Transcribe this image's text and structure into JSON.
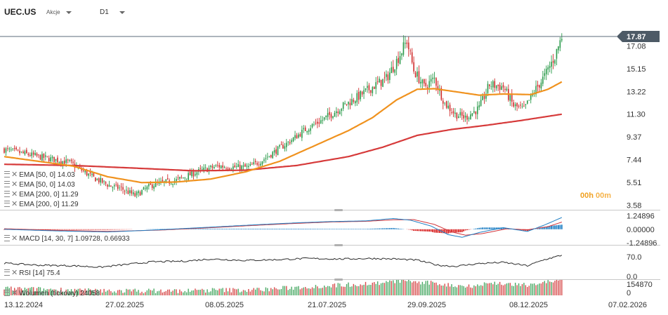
{
  "header": {
    "symbol": "UEC.US",
    "type": "Akcje",
    "timeframe": "D1"
  },
  "timer": {
    "left": "00h",
    "right": "00m"
  },
  "legend": [
    {
      "text": "EMA [50, 0] 14.03"
    },
    {
      "text": "EMA [50, 0] 14.03"
    },
    {
      "text": "EMA [200, 0] 11.29"
    },
    {
      "text": "EMA [200, 0] 11.29"
    }
  ],
  "macd": {
    "label": "MACD [14, 30, 7] 1.09728, 0.66933"
  },
  "rsi": {
    "label": "RSI [14] 75.4"
  },
  "volume": {
    "label": "Wolumen (tickowy) 24058"
  },
  "colors": {
    "up": "#2a9a4a",
    "down": "#d02c2c",
    "ema50": "#f0921e",
    "ema200": "#d63a3a",
    "price_badge": "#4d5a66",
    "macd_hist_up": "#1f7fc4",
    "macd_hist_down": "#d82020",
    "macd_line": "#1f7fc4",
    "signal_line": "#d0343a"
  },
  "chart_data": [
    {
      "type": "candlestick",
      "name": "price",
      "x_ticks": [
        "13.12.2024",
        "27.02.2025",
        "08.05.2025",
        "21.07.2025",
        "29.09.2025",
        "08.12.2025",
        "07.02.2026"
      ],
      "y_ticks": [
        3.58,
        5.51,
        7.44,
        9.37,
        11.3,
        13.22,
        15.15,
        17.08
      ],
      "ylim": [
        3.2,
        18.7
      ],
      "last_price": 17.87,
      "last_price_label": "17.87",
      "close_anchors": [
        [
          0,
          8.3
        ],
        [
          20,
          7.7
        ],
        [
          38,
          7.2
        ],
        [
          52,
          5.9
        ],
        [
          62,
          5.2
        ],
        [
          68,
          5.0
        ],
        [
          76,
          4.4
        ],
        [
          86,
          5.3
        ],
        [
          100,
          5.7
        ],
        [
          112,
          6.4
        ],
        [
          124,
          6.9
        ],
        [
          134,
          6.8
        ],
        [
          142,
          6.8
        ],
        [
          150,
          7.4
        ],
        [
          158,
          8.2
        ],
        [
          166,
          9.0
        ],
        [
          176,
          10.1
        ],
        [
          186,
          10.9
        ],
        [
          196,
          11.9
        ],
        [
          206,
          12.8
        ],
        [
          214,
          13.6
        ],
        [
          222,
          14.3
        ],
        [
          228,
          15.8
        ],
        [
          234,
          17.5
        ],
        [
          238,
          15.0
        ],
        [
          244,
          13.6
        ],
        [
          250,
          14.3
        ],
        [
          256,
          12.2
        ],
        [
          262,
          11.3
        ],
        [
          268,
          11.0
        ],
        [
          276,
          11.8
        ],
        [
          282,
          13.8
        ],
        [
          290,
          13.6
        ],
        [
          296,
          12.0
        ],
        [
          302,
          11.7
        ],
        [
          308,
          13.2
        ],
        [
          314,
          14.5
        ],
        [
          320,
          16.2
        ],
        [
          324,
          17.87
        ]
      ],
      "ema50_anchors": [
        [
          0,
          7.7
        ],
        [
          20,
          7.3
        ],
        [
          40,
          6.9
        ],
        [
          60,
          6.0
        ],
        [
          80,
          5.5
        ],
        [
          100,
          5.55
        ],
        [
          120,
          5.8
        ],
        [
          140,
          6.4
        ],
        [
          160,
          7.3
        ],
        [
          180,
          8.6
        ],
        [
          200,
          9.9
        ],
        [
          214,
          11.0
        ],
        [
          228,
          12.5
        ],
        [
          240,
          13.4
        ],
        [
          250,
          13.45
        ],
        [
          262,
          13.2
        ],
        [
          276,
          12.9
        ],
        [
          290,
          13.0
        ],
        [
          306,
          12.95
        ],
        [
          316,
          13.4
        ],
        [
          324,
          14.03
        ]
      ],
      "ema200_anchors": [
        [
          0,
          7.05
        ],
        [
          40,
          6.95
        ],
        [
          80,
          6.7
        ],
        [
          110,
          6.5
        ],
        [
          140,
          6.55
        ],
        [
          170,
          6.95
        ],
        [
          200,
          7.7
        ],
        [
          220,
          8.5
        ],
        [
          240,
          9.5
        ],
        [
          260,
          10.0
        ],
        [
          280,
          10.35
        ],
        [
          300,
          10.75
        ],
        [
          324,
          11.29
        ]
      ]
    },
    {
      "type": "line",
      "name": "MACD",
      "y_ticks": [
        1.2489,
        0.0,
        -1.2489
      ],
      "y_tick_labels": [
        "1.24896",
        "0.00000",
        "-1.24896"
      ],
      "ylim": [
        -1.45,
        1.75
      ],
      "macd_anchors": [
        [
          0,
          0.0
        ],
        [
          30,
          -0.15
        ],
        [
          60,
          -0.25
        ],
        [
          90,
          -0.05
        ],
        [
          120,
          0.2
        ],
        [
          150,
          0.45
        ],
        [
          170,
          0.6
        ],
        [
          190,
          0.72
        ],
        [
          210,
          0.78
        ],
        [
          226,
          1.0
        ],
        [
          236,
          0.85
        ],
        [
          248,
          0.3
        ],
        [
          258,
          -0.5
        ],
        [
          266,
          -0.75
        ],
        [
          276,
          -0.3
        ],
        [
          290,
          0.15
        ],
        [
          304,
          -0.2
        ],
        [
          314,
          0.4
        ],
        [
          324,
          1.09728
        ]
      ],
      "signal_anchors": [
        [
          0,
          0.05
        ],
        [
          30,
          -0.1
        ],
        [
          60,
          -0.2
        ],
        [
          90,
          -0.08
        ],
        [
          120,
          0.15
        ],
        [
          150,
          0.4
        ],
        [
          170,
          0.55
        ],
        [
          190,
          0.68
        ],
        [
          210,
          0.74
        ],
        [
          226,
          0.88
        ],
        [
          238,
          0.9
        ],
        [
          250,
          0.45
        ],
        [
          260,
          -0.25
        ],
        [
          268,
          -0.55
        ],
        [
          278,
          -0.4
        ],
        [
          292,
          0.05
        ],
        [
          304,
          -0.05
        ],
        [
          316,
          0.25
        ],
        [
          324,
          0.66933
        ]
      ]
    },
    {
      "type": "line",
      "name": "RSI",
      "y_ticks": [
        70.0,
        0.0
      ],
      "y_tick_labels": [
        "70.0",
        "0.0"
      ],
      "ylim": [
        0,
        100
      ],
      "rsi_anchors": [
        [
          0,
          47
        ],
        [
          20,
          40
        ],
        [
          40,
          38
        ],
        [
          56,
          33
        ],
        [
          70,
          42
        ],
        [
          86,
          52
        ],
        [
          104,
          54
        ],
        [
          120,
          62
        ],
        [
          140,
          57
        ],
        [
          160,
          60
        ],
        [
          176,
          64
        ],
        [
          196,
          62
        ],
        [
          214,
          64
        ],
        [
          228,
          62
        ],
        [
          240,
          58
        ],
        [
          252,
          40
        ],
        [
          262,
          36
        ],
        [
          276,
          46
        ],
        [
          290,
          50
        ],
        [
          304,
          38
        ],
        [
          314,
          60
        ],
        [
          324,
          75.4
        ]
      ]
    },
    {
      "type": "bar",
      "name": "Wolumen",
      "y_ticks": [
        154870,
        0
      ],
      "y_tick_labels": [
        "154870",
        "0"
      ],
      "ylim": [
        0,
        154870
      ]
    }
  ]
}
